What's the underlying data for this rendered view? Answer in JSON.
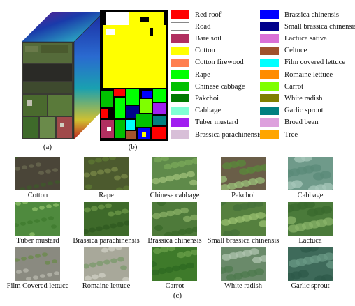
{
  "panel_labels": {
    "a": "(a)",
    "b": "(b)",
    "c": "(c)"
  },
  "legend_left": [
    {
      "label": "Red roof",
      "color": "#ff0000"
    },
    {
      "label": "Road",
      "color": "#ffffff"
    },
    {
      "label": "Bare soil",
      "color": "#b03060"
    },
    {
      "label": "Cotton",
      "color": "#ffff00"
    },
    {
      "label": "Cotton firewood",
      "color": "#ff7f50"
    },
    {
      "label": "Rape",
      "color": "#00ff00"
    },
    {
      "label": "Chinese cabbage",
      "color": "#00c000"
    },
    {
      "label": "Pakchoi",
      "color": "#007a00"
    },
    {
      "label": "Cabbage",
      "color": "#7fffd4"
    },
    {
      "label": "Tuber mustard",
      "color": "#a020f0"
    },
    {
      "label": "Brassica parachinensis",
      "color": "#d8bfd8"
    }
  ],
  "legend_right": [
    {
      "label": "Brassica chinensis",
      "color": "#0000ff"
    },
    {
      "label": "Small brassica chinensis",
      "color": "#00008b"
    },
    {
      "label": "Lactuca sativa",
      "color": "#da70d6"
    },
    {
      "label": "Celtuce",
      "color": "#a0522d"
    },
    {
      "label": "Film covered lettuce",
      "color": "#00ffff"
    },
    {
      "label": "Romaine lettuce",
      "color": "#ff8c00"
    },
    {
      "label": "Carrot",
      "color": "#7fff00"
    },
    {
      "label": "White radish",
      "color": "#808000"
    },
    {
      "label": "Garlic sprout",
      "color": "#008080"
    },
    {
      "label": "Broad bean",
      "color": "#dda0dd"
    },
    {
      "label": "Tree",
      "color": "#ffa500"
    }
  ],
  "photos": [
    {
      "caption": "Cotton",
      "base": "#4a4538",
      "accent": "#6b6a50",
      "leaf": "#3e5a2a"
    },
    {
      "caption": "Rape",
      "base": "#4c5a2e",
      "accent": "#7a8a48",
      "leaf": "#5d7a33"
    },
    {
      "caption": "Chinese cabbage",
      "base": "#5f8a4a",
      "accent": "#9fc07a",
      "leaf": "#7aa85a"
    },
    {
      "caption": "Pakchoi",
      "base": "#6a5e48",
      "accent": "#9bc07a",
      "leaf": "#5a8a3a"
    },
    {
      "caption": "Cabbage",
      "base": "#6f9a8a",
      "accent": "#a7c7b9",
      "leaf": "#5a8a78"
    },
    {
      "caption": "Tuber mustard",
      "base": "#4f8a3e",
      "accent": "#8fc06a",
      "leaf": "#3e7a2e"
    },
    {
      "caption": "Brassica parachinensis",
      "base": "#3e6a2a",
      "accent": "#6e9a48",
      "leaf": "#2f5a20"
    },
    {
      "caption": "Brassica chinensis",
      "base": "#4e7a3a",
      "accent": "#8ab066",
      "leaf": "#3a6a2a"
    },
    {
      "caption": "Small brassica chinensis",
      "base": "#55803e",
      "accent": "#9ac070",
      "leaf": "#44703a"
    },
    {
      "caption": "Lactuca",
      "base": "#4a7a3a",
      "accent": "#8ab46a",
      "leaf": "#3a6a2e"
    },
    {
      "caption": "Film Covered lettuce",
      "base": "#8a8a80",
      "accent": "#b8b8ae",
      "leaf": "#6a8a4a"
    },
    {
      "caption": "Romaine lettuce",
      "base": "#a8a89a",
      "accent": "#d0d0c4",
      "leaf": "#7a9a6a"
    },
    {
      "caption": "Carrot",
      "base": "#3e7a2a",
      "accent": "#6aa04a",
      "leaf": "#2e6a22"
    },
    {
      "caption": "White radish",
      "base": "#6a8a6a",
      "accent": "#b0c4b0",
      "leaf": "#4e7a4e"
    },
    {
      "caption": "Garlic sprout",
      "base": "#3e6a5a",
      "accent": "#6a9a86",
      "leaf": "#2e5a4a"
    }
  ]
}
